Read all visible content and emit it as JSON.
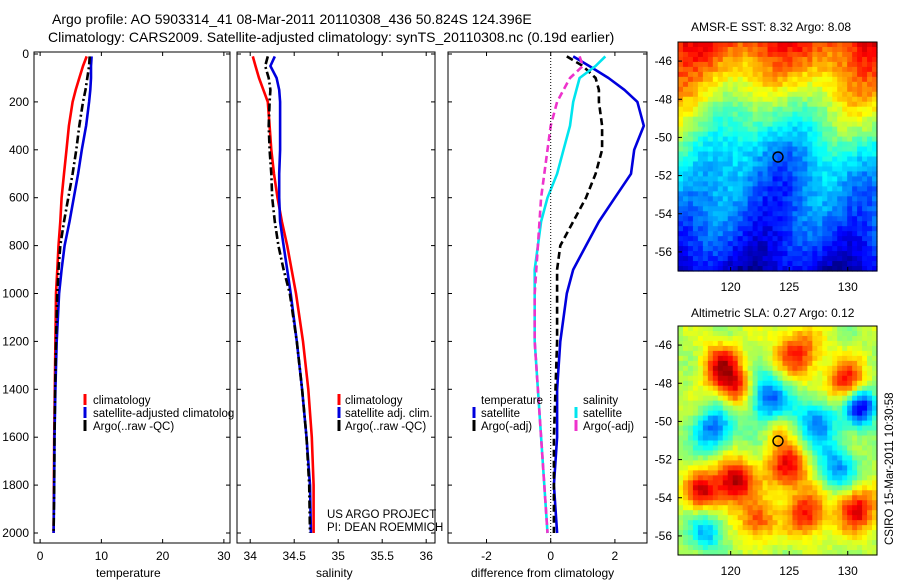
{
  "header": {
    "line1": "Argo profile: AO 5903314_41 08-Mar-2011 20110308_436 50.824S 124.396E",
    "line2": "Climatology: CARS2009. Satellite-adjusted climatology: synTS_20110308.nc (0.19d earlier)"
  },
  "colors": {
    "red": "#ff0000",
    "blue": "#0000dd",
    "black": "#000000",
    "cyan": "#00e5ee",
    "magenta": "#ee33cc"
  },
  "depth_ticks": [
    "0",
    "200",
    "400",
    "600",
    "800",
    "1000",
    "1200",
    "1400",
    "1600",
    "1800",
    "2000"
  ],
  "credit": {
    "line1": "US ARGO PROJECT",
    "line2": "PI: DEAN ROEMMICH"
  },
  "stamp": "CSIRO 15-Mar-2011 10:30:58",
  "chart_data": [
    {
      "type": "line",
      "ylabel": "",
      "xlabel": "temperature",
      "xlim": [
        -1,
        31
      ],
      "ylim": [
        2000,
        0
      ],
      "x_ticks": [
        "0",
        "10",
        "20",
        "30"
      ],
      "legend": [
        "climatology",
        "satellite-adjusted climatolog",
        "Argo(..raw -QC)"
      ],
      "series": [
        {
          "name": "climatology",
          "color": "red",
          "dash": "solid",
          "depth": [
            10,
            50,
            100,
            150,
            200,
            300,
            400,
            500,
            600,
            700,
            800,
            900,
            1000,
            1200,
            1400,
            1600,
            1800,
            2000
          ],
          "x": [
            7.6,
            7.0,
            6.4,
            5.8,
            5.3,
            4.7,
            4.3,
            3.9,
            3.5,
            3.3,
            3.0,
            2.8,
            2.6,
            2.5,
            2.4,
            2.3,
            2.25,
            2.2
          ]
        },
        {
          "name": "satellite-adjusted climatolog",
          "color": "blue",
          "dash": "solid",
          "depth": [
            10,
            50,
            100,
            150,
            200,
            300,
            400,
            500,
            600,
            700,
            800,
            900,
            1000,
            1200,
            1400,
            1600,
            1800,
            2000
          ],
          "x": [
            8.4,
            8.3,
            8.3,
            8.2,
            8.0,
            7.5,
            6.8,
            6.2,
            5.5,
            4.8,
            4.0,
            3.5,
            3.1,
            2.7,
            2.5,
            2.35,
            2.3,
            2.2
          ]
        },
        {
          "name": "Argo(..raw -QC)",
          "color": "black",
          "dash": "dashdot",
          "depth": [
            10,
            50,
            100,
            150,
            200,
            300,
            400,
            500,
            600,
            700,
            800,
            900,
            1000,
            1200,
            1400,
            1600,
            1800,
            2000
          ],
          "x": [
            8.1,
            8.0,
            7.7,
            7.4,
            7.0,
            6.4,
            5.9,
            5.3,
            4.6,
            3.9,
            3.3,
            3.0,
            2.8,
            2.6,
            2.45,
            2.35,
            2.3,
            2.2
          ]
        }
      ]
    },
    {
      "type": "line",
      "ylabel": "",
      "xlabel": "salinity",
      "xlim": [
        33.85,
        36.1
      ],
      "ylim": [
        2000,
        0
      ],
      "x_ticks": [
        "34",
        "34.5",
        "35",
        "35.5",
        "36"
      ],
      "legend": [
        "climatology",
        "satellite adj. clim.",
        "Argo(..raw -QC)"
      ],
      "series": [
        {
          "name": "climatology",
          "color": "red",
          "dash": "solid",
          "depth": [
            10,
            50,
            100,
            150,
            200,
            300,
            400,
            500,
            600,
            700,
            800,
            900,
            1000,
            1200,
            1400,
            1600,
            1800,
            2000
          ],
          "x": [
            34.03,
            34.06,
            34.1,
            34.15,
            34.2,
            34.22,
            34.24,
            34.27,
            34.31,
            34.36,
            34.42,
            34.47,
            34.52,
            34.6,
            34.66,
            34.7,
            34.72,
            34.72
          ]
        },
        {
          "name": "satellite adj. clim.",
          "color": "blue",
          "dash": "solid",
          "depth": [
            10,
            50,
            100,
            150,
            200,
            300,
            400,
            500,
            600,
            700,
            800,
            900,
            1000,
            1200,
            1400,
            1600,
            1800,
            2000
          ],
          "x": [
            34.28,
            34.23,
            34.3,
            34.33,
            34.34,
            34.34,
            34.34,
            34.33,
            34.33,
            34.34,
            34.38,
            34.42,
            34.46,
            34.53,
            34.59,
            34.64,
            34.68,
            34.69
          ]
        },
        {
          "name": "Argo(..raw -QC)",
          "color": "black",
          "dash": "dashdot",
          "depth": [
            10,
            50,
            100,
            150,
            200,
            300,
            400,
            500,
            600,
            700,
            800,
            900,
            1000,
            1200,
            1400,
            1600,
            1800,
            2000
          ],
          "x": [
            34.2,
            34.17,
            34.21,
            34.23,
            34.22,
            34.21,
            34.22,
            34.24,
            34.25,
            34.28,
            34.32,
            34.38,
            34.45,
            34.53,
            34.59,
            34.64,
            34.67,
            34.68
          ]
        }
      ]
    },
    {
      "type": "line",
      "ylabel": "",
      "xlabel": "difference from climatology",
      "xlim": [
        -3.2,
        3.0
      ],
      "ylim": [
        2000,
        0
      ],
      "x_ticks": [
        "-2",
        "0",
        "2"
      ],
      "legend_left_title": "temperature",
      "legend_right_title": "salinity",
      "legend": [
        "satellite",
        "Argo(-adj)",
        "satellite",
        "Argo(-adj)"
      ],
      "series": [
        {
          "name": "satellite",
          "color": "blue",
          "dash": "solid",
          "depth": [
            10,
            50,
            100,
            150,
            200,
            300,
            400,
            500,
            600,
            700,
            800,
            900,
            1000,
            1200,
            1400,
            1600,
            1800,
            2000
          ],
          "x": [
            0.7,
            1.2,
            1.8,
            2.3,
            2.7,
            2.9,
            2.6,
            2.5,
            2.0,
            1.5,
            1.1,
            0.7,
            0.5,
            0.3,
            0.2,
            0.2,
            0.1,
            0.2
          ]
        },
        {
          "name": "Argo(-adj)",
          "color": "black",
          "dash": "dashed",
          "depth": [
            10,
            50,
            100,
            150,
            200,
            300,
            400,
            500,
            600,
            700,
            800,
            900,
            1000,
            1200,
            1400,
            1600,
            1800,
            2000
          ],
          "x": [
            0.5,
            1.0,
            1.4,
            1.5,
            1.5,
            1.6,
            1.6,
            1.4,
            1.1,
            0.7,
            0.3,
            0.2,
            0.2,
            0.2,
            0.15,
            0.1,
            0.1,
            0.1
          ]
        },
        {
          "name": "satellite",
          "color": "cyan",
          "dash": "solid",
          "depth": [
            10,
            50,
            100,
            150,
            200,
            300,
            400,
            500,
            600,
            700,
            800,
            900,
            1000,
            1200,
            1400,
            1600,
            1800,
            2000
          ],
          "x": [
            1.7,
            1.4,
            0.9,
            0.8,
            0.7,
            0.6,
            0.4,
            0.2,
            -0.1,
            -0.3,
            -0.4,
            -0.5,
            -0.5,
            -0.5,
            -0.4,
            -0.3,
            -0.2,
            -0.1
          ]
        },
        {
          "name": "Argo(-adj)",
          "color": "magenta",
          "dash": "dashed",
          "depth": [
            10,
            50,
            100,
            150,
            200,
            300,
            400,
            500,
            600,
            700,
            800,
            900,
            1000,
            1200,
            1400,
            1600,
            1800,
            2000
          ],
          "x": [
            0.9,
            1.0,
            0.6,
            0.4,
            0.2,
            0.0,
            -0.1,
            -0.2,
            -0.3,
            -0.35,
            -0.4,
            -0.45,
            -0.5,
            -0.5,
            -0.4,
            -0.3,
            -0.2,
            -0.1
          ]
        }
      ]
    },
    {
      "type": "heatmap",
      "title": "AMSR-E SST: 8.32 Argo: 8.08",
      "xlim": [
        115.5,
        132.5
      ],
      "ylim": [
        -57,
        -45
      ],
      "x_ticks": [
        "120",
        "125",
        "130"
      ],
      "y_ticks": [
        "-46",
        "-48",
        "-50",
        "-52",
        "-54",
        "-56"
      ],
      "marker": {
        "lon": 124.396,
        "lat": -50.824
      }
    },
    {
      "type": "heatmap",
      "title": "Altimetric SLA: 0.27 Argo: 0.12",
      "xlim": [
        115.5,
        132.5
      ],
      "ylim": [
        -57,
        -45
      ],
      "x_ticks": [
        "120",
        "125",
        "130"
      ],
      "y_ticks": [
        "-46",
        "-48",
        "-50",
        "-52",
        "-54",
        "-56"
      ],
      "marker": {
        "lon": 124.396,
        "lat": -50.824
      }
    }
  ]
}
